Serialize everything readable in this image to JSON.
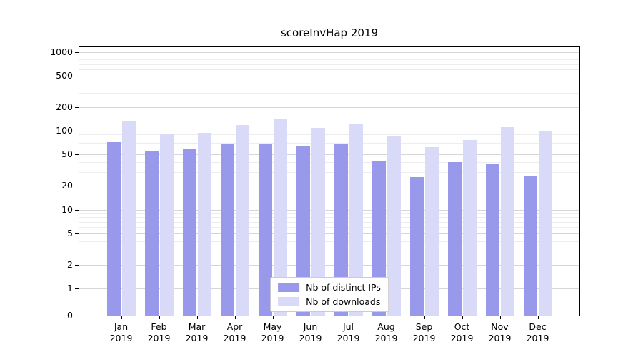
{
  "title": "scoreInvHap 2019",
  "chart_data": {
    "type": "bar",
    "title": "scoreInvHap 2019",
    "y_scale": "symlog",
    "ylim": [
      0,
      1000
    ],
    "grid": true,
    "y_ticks": [
      0,
      1,
      2,
      5,
      10,
      20,
      50,
      100,
      200,
      500,
      1000
    ],
    "y_minor_ticks": [
      3,
      4,
      6,
      7,
      8,
      9,
      30,
      40,
      60,
      70,
      80,
      90,
      300,
      400,
      600,
      700,
      800,
      900
    ],
    "categories": [
      "Jan",
      "Feb",
      "Mar",
      "Apr",
      "May",
      "Jun",
      "Jul",
      "Aug",
      "Sep",
      "Oct",
      "Nov",
      "Dec"
    ],
    "year": "2019",
    "series": [
      {
        "name": "Nb of distinct IPs",
        "color": "#9999ec",
        "values": [
          72,
          55,
          58,
          67,
          67,
          63,
          67,
          42,
          26,
          40,
          38,
          27
        ]
      },
      {
        "name": "Nb of downloads",
        "color": "#d9d9f8",
        "values": [
          130,
          93,
          95,
          118,
          140,
          108,
          120,
          85,
          62,
          76,
          112,
          100
        ]
      }
    ],
    "legend": {
      "position": "lower center",
      "entries": [
        "Nb of distinct IPs",
        "Nb of downloads"
      ]
    }
  }
}
